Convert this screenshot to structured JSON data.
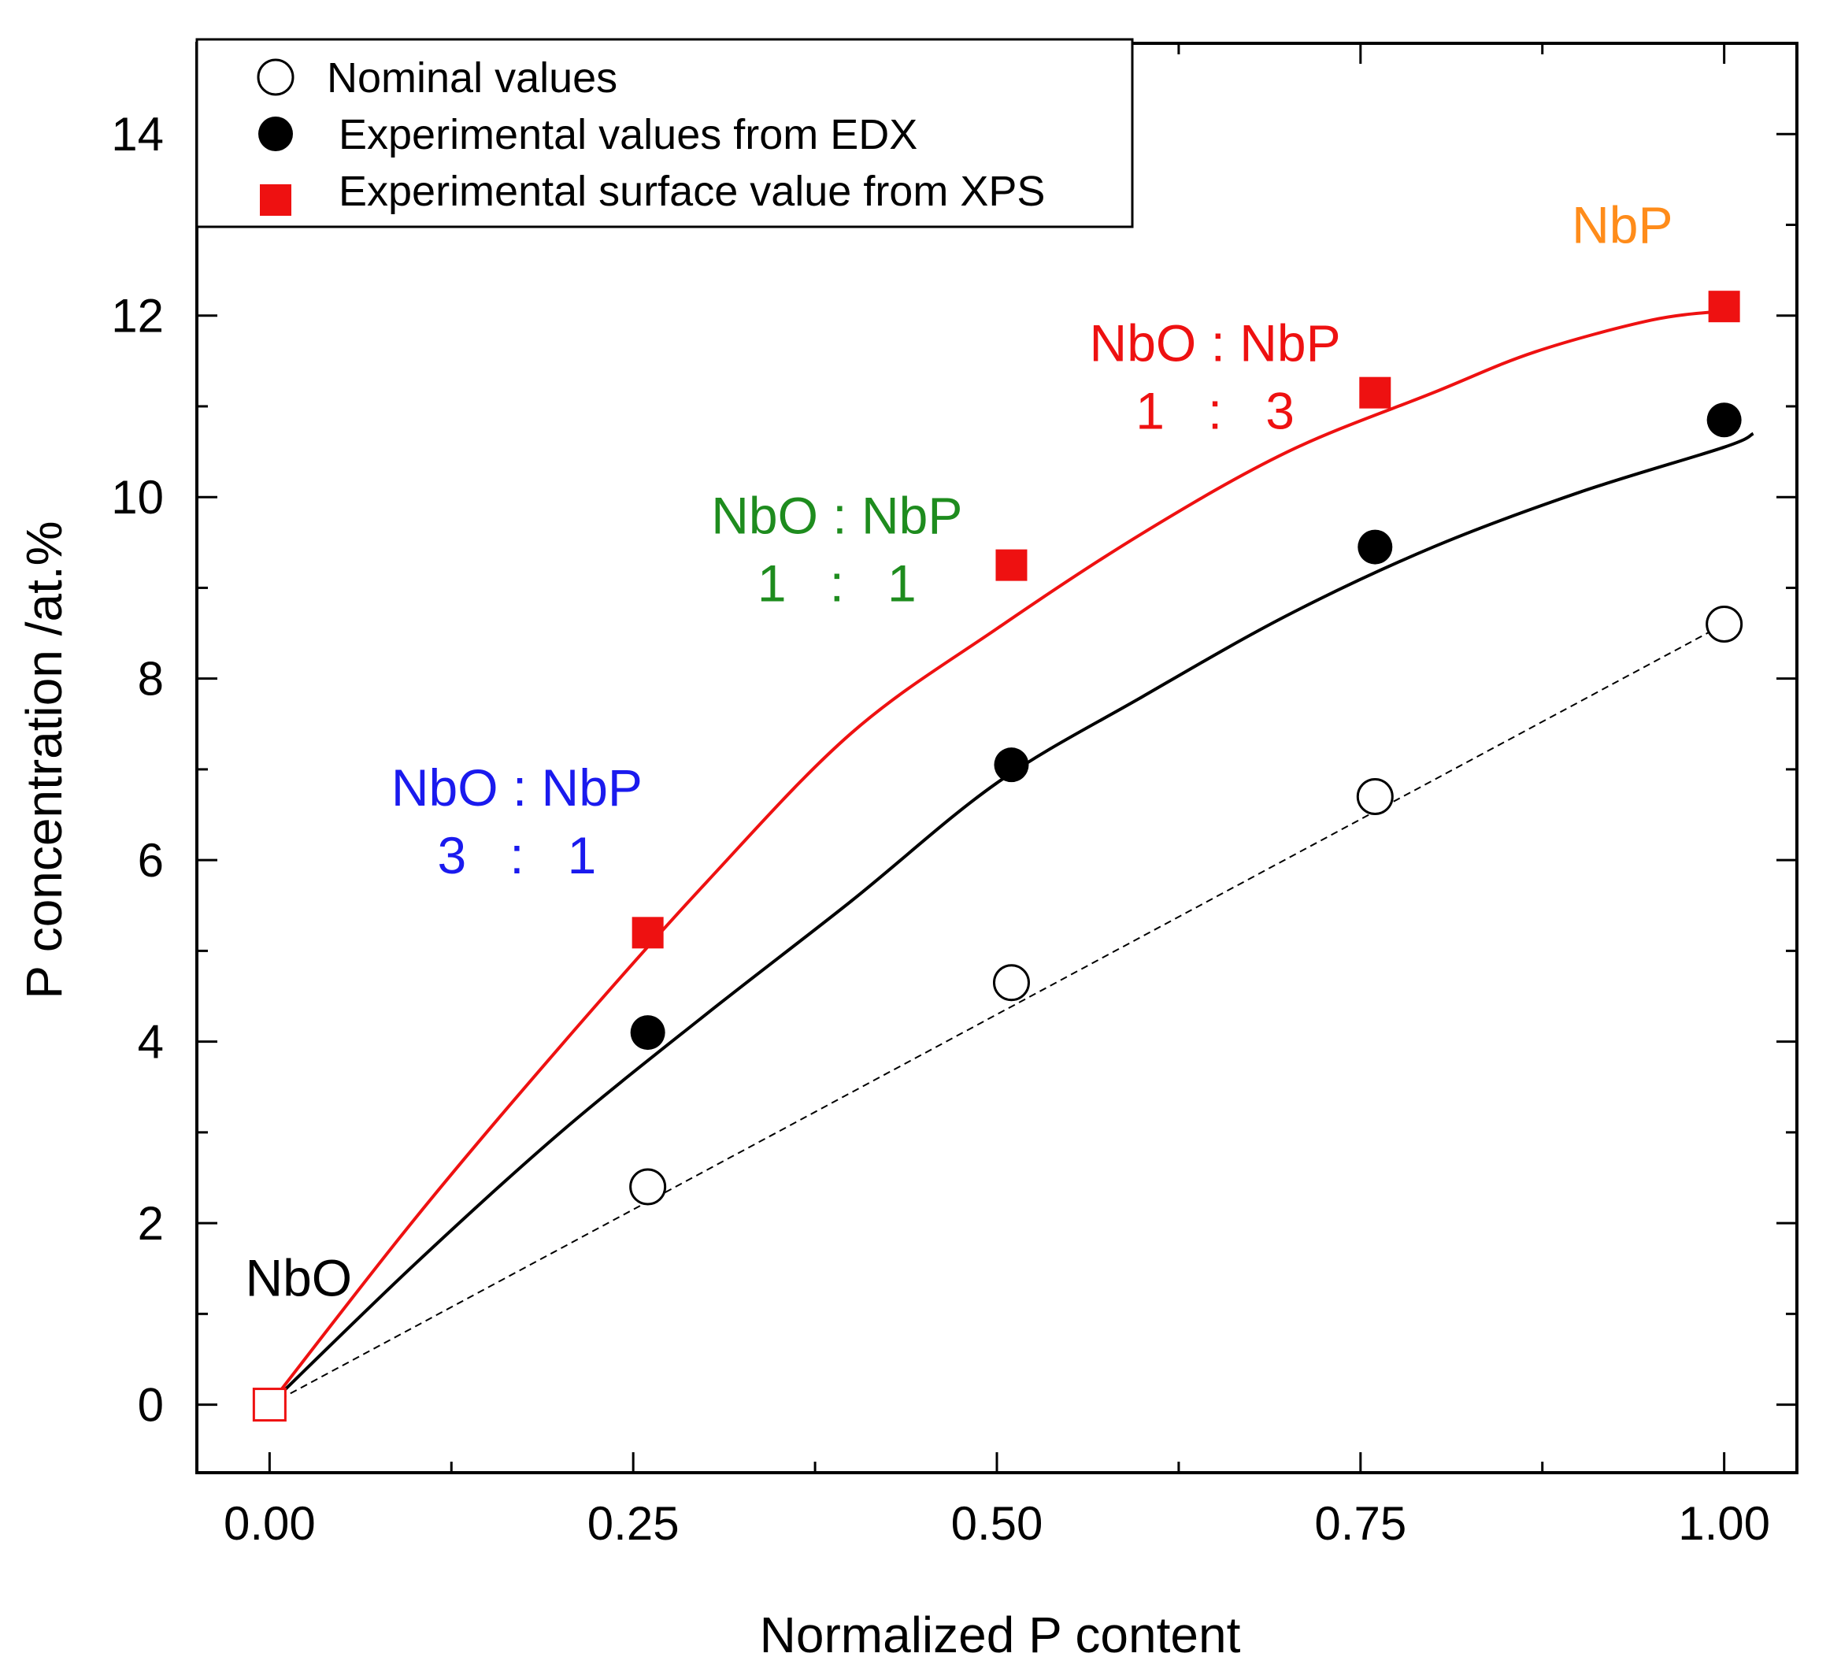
{
  "chart_data": {
    "type": "scatter",
    "title": "",
    "xlabel": "Normalized P content",
    "ylabel": "P concentration /at.%",
    "xlim": [
      -0.05,
      1.05
    ],
    "ylim": [
      -0.75,
      15
    ],
    "x_ticks": [
      0.0,
      0.25,
      0.5,
      0.75,
      1.0
    ],
    "x_tick_labels": [
      "0.00",
      "0.25",
      "0.50",
      "0.75",
      "1.00"
    ],
    "y_ticks": [
      0,
      2,
      4,
      6,
      8,
      10,
      12,
      14
    ],
    "y_tick_labels": [
      "0",
      "2",
      "4",
      "6",
      "8",
      "10",
      "12",
      "14"
    ],
    "grid": false,
    "legend": {
      "position": "top-left",
      "entries": [
        {
          "label": "Nominal values",
          "marker": "open-circle",
          "color": "#000000"
        },
        {
          "label": "Experimental values from EDX",
          "marker": "filled-circle",
          "color": "#000000"
        },
        {
          "label": "Experimental surface value from XPS",
          "marker": "filled-square",
          "color": "#ee1111"
        }
      ]
    },
    "series": [
      {
        "name": "Nominal values",
        "marker": "open-circle",
        "color": "#000000",
        "x": [
          0.0,
          0.26,
          0.51,
          0.76,
          1.0
        ],
        "y": [
          0.0,
          2.4,
          4.65,
          6.7,
          8.6
        ]
      },
      {
        "name": "Experimental values from EDX",
        "marker": "filled-circle",
        "color": "#000000",
        "x": [
          0.0,
          0.26,
          0.51,
          0.76,
          1.0
        ],
        "y": [
          0.0,
          4.1,
          7.05,
          9.45,
          10.85
        ]
      },
      {
        "name": "Experimental surface value from XPS",
        "marker": "filled-square",
        "color": "#ee1111",
        "x": [
          0.0,
          0.26,
          0.51,
          0.76,
          1.0
        ],
        "y": [
          0.0,
          5.2,
          9.25,
          11.15,
          12.1
        ]
      }
    ],
    "fits": [
      {
        "name": "Nominal linear fit",
        "style": "dashed",
        "color": "#000000",
        "x": [
          0.0,
          0.25,
          0.5,
          0.75,
          1.0
        ],
        "y": [
          0.0,
          2.15,
          4.3,
          6.45,
          8.6
        ]
      },
      {
        "name": "EDX fit",
        "style": "solid",
        "color": "#000000",
        "x": [
          0.0,
          0.1,
          0.2,
          0.3,
          0.4,
          0.5,
          0.6,
          0.7,
          0.8,
          0.9,
          1.0,
          1.02
        ],
        "y": [
          0.0,
          1.55,
          3.0,
          4.3,
          5.55,
          6.85,
          7.8,
          8.7,
          9.45,
          10.05,
          10.55,
          10.7
        ]
      },
      {
        "name": "XPS fit",
        "style": "solid",
        "color": "#ee1111",
        "x": [
          0.0,
          0.1,
          0.2,
          0.3,
          0.4,
          0.5,
          0.6,
          0.7,
          0.8,
          0.87,
          0.95,
          1.0
        ],
        "y": [
          0.0,
          2.05,
          3.95,
          5.75,
          7.4,
          8.55,
          9.6,
          10.5,
          11.15,
          11.6,
          11.95,
          12.05
        ]
      }
    ],
    "annotations": [
      {
        "line1": "NbO",
        "line2": "",
        "color": "#000000",
        "x": 0.02,
        "y": 1.2
      },
      {
        "line1": "NbO : NbP",
        "line2": "3   :   1",
        "color": "#1a1aee",
        "x": 0.17,
        "y": 6.6
      },
      {
        "line1": "NbO : NbP",
        "line2": "1   :   1",
        "color": "#1e8c1e",
        "x": 0.39,
        "y": 9.6
      },
      {
        "line1": "NbO : NbP",
        "line2": "1   :   3",
        "color": "#ee1111",
        "x": 0.65,
        "y": 11.5
      },
      {
        "line1": "NbP",
        "line2": "",
        "color": "#ff8c1a",
        "x": 0.93,
        "y": 12.8
      }
    ]
  }
}
